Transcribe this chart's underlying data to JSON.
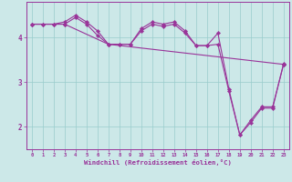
{
  "xlabel": "Windchill (Refroidissement éolien,°C)",
  "bg_color": "#cce8e8",
  "grid_color": "#99cccc",
  "line_color": "#993399",
  "xlim": [
    -0.5,
    23.5
  ],
  "ylim": [
    1.5,
    4.8
  ],
  "xticks": [
    0,
    1,
    2,
    3,
    4,
    5,
    6,
    7,
    8,
    9,
    10,
    11,
    12,
    13,
    14,
    15,
    16,
    17,
    18,
    19,
    20,
    21,
    22,
    23
  ],
  "yticks": [
    2,
    3,
    4
  ],
  "series": [
    {
      "x": [
        0,
        1,
        2,
        3,
        4,
        5,
        6,
        7,
        8,
        9,
        10,
        11,
        12,
        13,
        14,
        15,
        16,
        17,
        18,
        19,
        20,
        21,
        22,
        23
      ],
      "y": [
        4.3,
        4.3,
        4.3,
        4.35,
        4.5,
        4.35,
        4.15,
        3.85,
        3.85,
        3.85,
        4.2,
        4.35,
        4.3,
        4.35,
        4.15,
        3.82,
        3.82,
        4.1,
        2.85,
        1.82,
        2.15,
        2.45,
        2.45,
        3.4
      ]
    },
    {
      "x": [
        0,
        1,
        2,
        3,
        4,
        5,
        6,
        7,
        8,
        9,
        10,
        11,
        12,
        13,
        14,
        15,
        16,
        17,
        18,
        19,
        20,
        21,
        22,
        23
      ],
      "y": [
        4.3,
        4.3,
        4.3,
        4.3,
        4.45,
        4.3,
        4.05,
        3.85,
        3.85,
        3.85,
        4.15,
        4.3,
        4.25,
        4.3,
        4.1,
        3.82,
        3.82,
        3.85,
        2.8,
        1.82,
        2.1,
        2.42,
        2.42,
        3.42
      ]
    },
    {
      "x": [
        0,
        3,
        7,
        23
      ],
      "y": [
        4.3,
        4.3,
        3.85,
        3.4
      ]
    }
  ]
}
